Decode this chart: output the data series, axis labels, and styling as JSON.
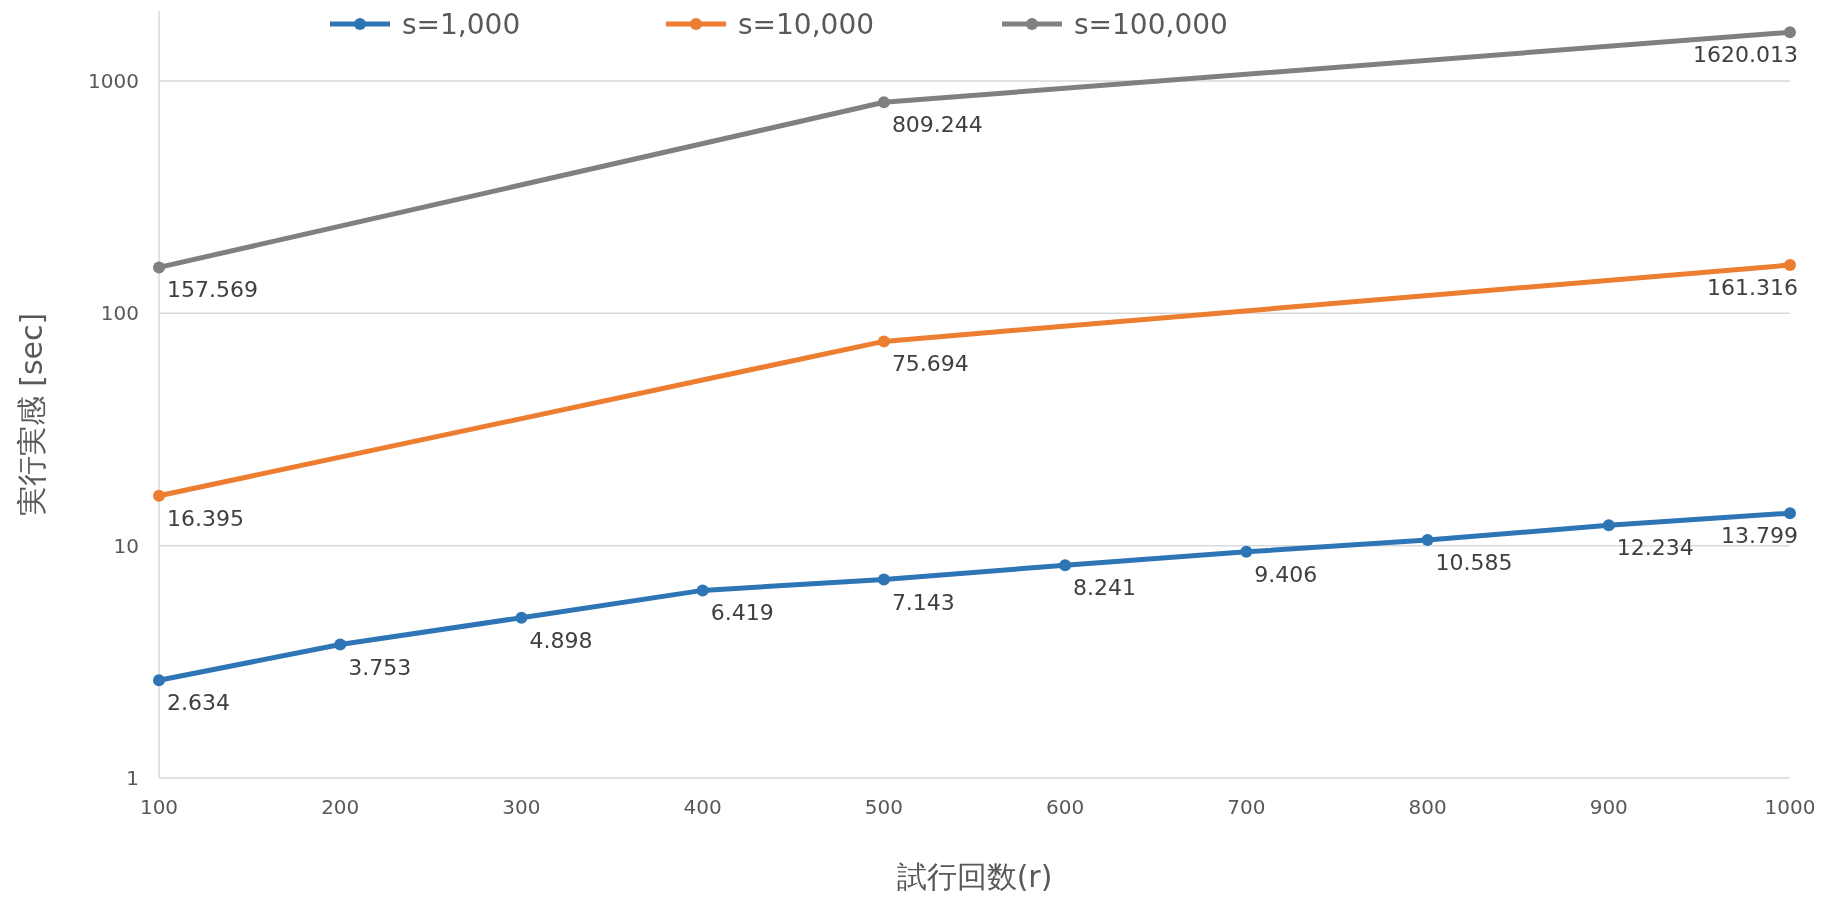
{
  "chart_data": {
    "type": "line",
    "xlabel": "試行回数(r)",
    "ylabel": "実行実感 [sec]",
    "log": "y",
    "grid": "y",
    "legend": "top",
    "marker": "circle",
    "line_style": "solid",
    "data_labels": true,
    "xlim": [
      100,
      1000
    ],
    "xticks": [
      100,
      200,
      300,
      400,
      500,
      600,
      700,
      800,
      900,
      1000
    ],
    "ylim": [
      1,
      2000
    ],
    "yticks": [
      1,
      10,
      100,
      1000
    ],
    "series": [
      {
        "name": "s=1,000",
        "color": "#2e75b6",
        "x": [
          100,
          200,
          300,
          400,
          500,
          600,
          700,
          800,
          900,
          1000
        ],
        "values": [
          2.634,
          3.753,
          4.898,
          6.419,
          7.143,
          8.241,
          9.406,
          10.585,
          12.234,
          13.799
        ]
      },
      {
        "name": "s=10,000",
        "color": "#ed7d31",
        "x": [
          100,
          500,
          1000
        ],
        "values": [
          16.395,
          75.694,
          161.316
        ]
      },
      {
        "name": "s=100,000",
        "color": "#808080",
        "x": [
          100,
          500,
          1000
        ],
        "values": [
          157.569,
          809.244,
          1620.013
        ]
      }
    ]
  }
}
